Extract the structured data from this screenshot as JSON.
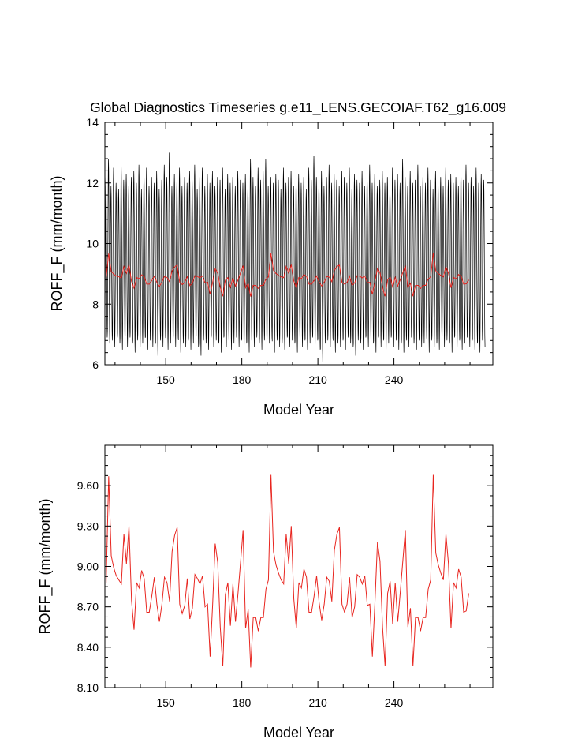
{
  "title": "Global Diagnostics Timeseries g.e11_LENS.GECOIAF.T62_g16.009",
  "colors": {
    "monthly": "#000000",
    "annual": "#e8251f",
    "axis": "#000000"
  },
  "chart_data": [
    {
      "type": "line",
      "xlabel": "Model Year",
      "ylabel": "ROFF_F (mm/month)",
      "xlim": [
        126,
        279
      ],
      "ylim": [
        6,
        14
      ],
      "xticks": [
        150,
        180,
        210,
        240
      ],
      "xtick_labels": [
        "150",
        "180",
        "210",
        "240"
      ],
      "yticks": [
        6,
        8,
        10,
        12,
        14
      ],
      "ytick_labels": [
        "6",
        "8",
        "10",
        "12",
        "14"
      ],
      "series": [
        {
          "kind": "monthly",
          "color": "#000000",
          "description_hidden": true,
          "annual_max": [
            12.2,
            12.8,
            11.9,
            12.5,
            12.0,
            11.8,
            12.6,
            12.1,
            12.3,
            11.9,
            12.2,
            12.4,
            12.0,
            12.6,
            11.8,
            12.3,
            12.5,
            11.9,
            12.2,
            12.0,
            12.4,
            11.8,
            12.1,
            12.6,
            12.2,
            13.0,
            11.9,
            12.3,
            12.1,
            12.5,
            11.9,
            12.2,
            12.0,
            12.4,
            12.1,
            12.6,
            11.8,
            12.2,
            12.5,
            11.9,
            12.3,
            12.0,
            12.4,
            11.9,
            12.2,
            12.1,
            12.5,
            11.8,
            12.3,
            12.0,
            12.2,
            11.9,
            12.4,
            12.1,
            12.0,
            12.3,
            11.9,
            12.8,
            12.2,
            11.9,
            12.5,
            12.1,
            12.4,
            12.8,
            11.9,
            12.2,
            12.0,
            12.3,
            12.1,
            11.8,
            12.5,
            12.0,
            12.2,
            12.4,
            11.9,
            12.1,
            12.3,
            12.0,
            12.2,
            11.8,
            12.5,
            12.1,
            12.9,
            12.2,
            12.0,
            12.4,
            11.9,
            12.2,
            12.6,
            12.0,
            12.3,
            12.1,
            11.9,
            12.4,
            12.2,
            12.0,
            12.5,
            11.8,
            12.3,
            12.1,
            12.0,
            12.4,
            11.9,
            12.2,
            12.6,
            12.0,
            12.3,
            11.9,
            12.1,
            12.4,
            12.0,
            12.2,
            11.8,
            12.5,
            12.1,
            12.3,
            12.0,
            12.8,
            12.2,
            11.9,
            12.4,
            12.0,
            12.1,
            12.6,
            11.9,
            12.2,
            12.0,
            12.5,
            12.1,
            11.8,
            12.4,
            12.0,
            12.2,
            11.9,
            12.5,
            12.1,
            12.3,
            12.0,
            12.2,
            11.9,
            12.4,
            12.1,
            12.6,
            12.0,
            12.2,
            11.9,
            12.5,
            12.0,
            12.3,
            12.1,
            12.0,
            12.4
          ],
          "annual_min": [
            6.9,
            6.7,
            6.8,
            6.6,
            6.9,
            6.7,
            6.5,
            6.8,
            6.6,
            6.9,
            6.7,
            6.4,
            6.8,
            6.6,
            6.7,
            6.9,
            6.5,
            6.8,
            6.6,
            6.7,
            6.3,
            6.8,
            6.6,
            6.9,
            6.5,
            6.7,
            6.8,
            6.6,
            6.9,
            6.4,
            6.7,
            6.6,
            6.8,
            6.5,
            6.7,
            6.9,
            6.6,
            6.3,
            6.8,
            6.7,
            6.5,
            6.9,
            6.6,
            6.8,
            6.7,
            6.4,
            6.9,
            6.6,
            6.8,
            6.5,
            6.7,
            6.9,
            6.6,
            6.8,
            6.5,
            6.7,
            6.4,
            6.8,
            6.6,
            6.9,
            6.7,
            6.5,
            6.8,
            6.6,
            6.7,
            6.9,
            6.4,
            6.8,
            6.6,
            6.7,
            6.5,
            6.9,
            6.6,
            6.8,
            6.7,
            6.4,
            6.9,
            6.6,
            6.8,
            6.5,
            6.7,
            6.9,
            6.6,
            6.8,
            6.5,
            6.1,
            6.7,
            6.8,
            6.6,
            6.9,
            6.4,
            6.7,
            6.6,
            6.8,
            6.5,
            6.9,
            6.7,
            6.6,
            6.3,
            6.8,
            6.7,
            6.5,
            6.9,
            6.6,
            6.8,
            6.7,
            6.4,
            6.9,
            6.6,
            6.8,
            6.5,
            6.7,
            6.9,
            6.6,
            6.8,
            6.5,
            6.7,
            6.4,
            6.8,
            6.6,
            6.9,
            6.7,
            6.5,
            6.8,
            6.6,
            6.7,
            6.9,
            6.4,
            6.8,
            6.6,
            6.7,
            6.5,
            6.9,
            6.6,
            6.8,
            6.7,
            6.4,
            6.9,
            6.6,
            6.8,
            6.5,
            6.7,
            6.9,
            6.6,
            6.8,
            6.5,
            6.7,
            6.4,
            6.8,
            6.6
          ]
        },
        {
          "kind": "annual",
          "color": "#e8251f",
          "x_start": 126,
          "values": [
            8.88,
            9.67,
            9.08,
            8.99,
            8.93,
            8.9,
            8.87,
            9.24,
            9.02,
            9.3,
            8.75,
            8.53,
            8.88,
            8.84,
            8.97,
            8.91,
            8.66,
            8.66,
            8.78,
            8.92,
            8.72,
            8.59,
            8.72,
            8.92,
            8.88,
            8.74,
            9.11,
            9.23,
            9.29,
            8.72,
            8.65,
            8.71,
            8.91,
            8.61,
            8.69,
            8.94,
            8.91,
            8.87,
            8.93,
            8.7,
            8.72,
            8.33,
            8.72,
            9.17,
            9.03,
            8.55,
            8.26,
            8.79,
            8.88,
            8.56,
            8.87,
            8.59,
            8.8,
            9.03,
            9.27,
            8.54,
            8.68,
            8.25,
            8.62,
            8.62,
            8.52,
            8.62,
            8.62,
            8.83,
            8.9,
            9.68,
            9.11,
            9.01,
            8.95,
            8.9,
            8.87,
            9.24,
            9.02,
            9.3,
            8.76,
            8.54,
            8.88,
            8.84,
            8.98,
            8.92,
            8.66,
            8.66,
            8.78,
            8.93,
            8.73,
            8.6,
            8.72,
            8.92,
            8.89,
            8.74,
            9.12,
            9.24,
            9.29,
            8.72,
            8.66,
            8.72,
            8.92,
            8.62,
            8.7,
            8.94,
            8.92,
            8.87,
            8.93,
            8.71,
            8.72,
            8.33,
            8.73,
            9.18,
            9.04,
            8.55,
            8.26,
            8.8,
            8.89,
            8.57,
            8.88,
            8.59,
            8.81,
            9.04,
            9.27,
            8.55,
            8.69,
            8.26,
            8.62,
            8.62,
            8.52,
            8.62,
            8.62,
            8.83,
            8.9,
            9.68,
            9.1,
            9.01,
            8.95,
            8.9,
            9.24,
            9.02,
            8.54,
            8.88,
            8.84,
            8.98,
            8.92,
            8.66,
            8.67,
            8.8
          ]
        }
      ]
    },
    {
      "type": "line",
      "xlabel": "Model Year",
      "ylabel": "ROFF_F (mm/month)",
      "xlim": [
        126,
        279
      ],
      "ylim": [
        8.1,
        9.9
      ],
      "xticks": [
        150,
        180,
        210,
        240
      ],
      "xtick_labels": [
        "150",
        "180",
        "210",
        "240"
      ],
      "yticks": [
        8.1,
        8.4,
        8.7,
        9.0,
        9.3,
        9.6
      ],
      "ytick_labels": [
        "8.10",
        "8.40",
        "8.70",
        "9.00",
        "9.30",
        "9.60"
      ],
      "series": [
        {
          "kind": "annual",
          "color": "#e8251f",
          "x_start": 126,
          "values": [
            8.88,
            9.67,
            9.08,
            8.99,
            8.93,
            8.9,
            8.87,
            9.24,
            9.02,
            9.3,
            8.75,
            8.53,
            8.88,
            8.84,
            8.97,
            8.91,
            8.66,
            8.66,
            8.78,
            8.92,
            8.72,
            8.59,
            8.72,
            8.92,
            8.88,
            8.74,
            9.11,
            9.23,
            9.29,
            8.72,
            8.65,
            8.71,
            8.91,
            8.61,
            8.69,
            8.94,
            8.91,
            8.87,
            8.93,
            8.7,
            8.72,
            8.33,
            8.72,
            9.17,
            9.03,
            8.55,
            8.26,
            8.79,
            8.88,
            8.56,
            8.87,
            8.59,
            8.8,
            9.03,
            9.27,
            8.54,
            8.68,
            8.25,
            8.62,
            8.62,
            8.52,
            8.62,
            8.62,
            8.83,
            8.9,
            9.68,
            9.11,
            9.01,
            8.95,
            8.9,
            8.87,
            9.24,
            9.02,
            9.3,
            8.76,
            8.54,
            8.88,
            8.84,
            8.98,
            8.92,
            8.66,
            8.66,
            8.78,
            8.93,
            8.73,
            8.6,
            8.72,
            8.92,
            8.89,
            8.74,
            9.12,
            9.24,
            9.29,
            8.72,
            8.66,
            8.72,
            8.92,
            8.62,
            8.7,
            8.94,
            8.92,
            8.87,
            8.93,
            8.71,
            8.72,
            8.33,
            8.73,
            9.18,
            9.04,
            8.55,
            8.26,
            8.8,
            8.89,
            8.57,
            8.88,
            8.59,
            8.81,
            9.04,
            9.27,
            8.55,
            8.69,
            8.26,
            8.62,
            8.62,
            8.52,
            8.62,
            8.62,
            8.83,
            8.9,
            9.68,
            9.1,
            9.01,
            8.95,
            8.9,
            9.24,
            9.02,
            8.54,
            8.88,
            8.84,
            8.98,
            8.92,
            8.66,
            8.67,
            8.8
          ]
        }
      ]
    }
  ]
}
